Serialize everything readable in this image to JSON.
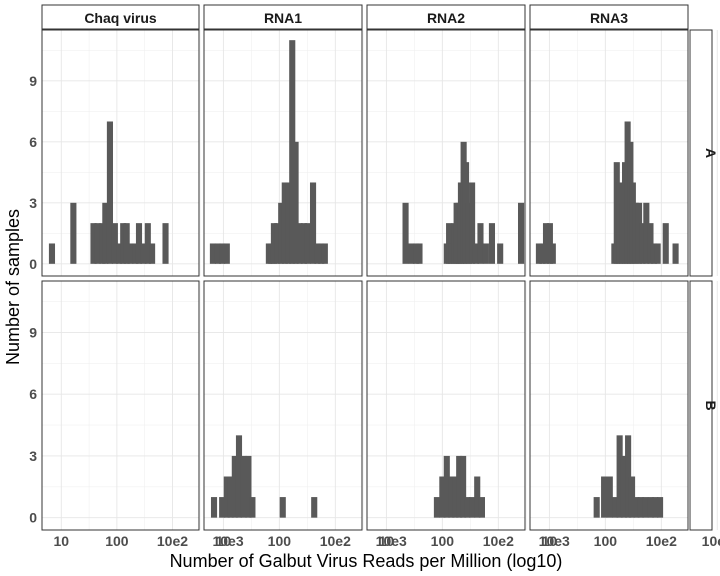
{
  "chart_data": {
    "type": "bar",
    "kind": "faceted histogram",
    "xlabel": "Number of Galbut Virus Reads per Million (log10)",
    "ylabel": "Number of samples",
    "x_scale": "log10",
    "xlim": [
      4.5,
      3000
    ],
    "ylim": [
      -0.6,
      11.5
    ],
    "x_ticks": [
      10,
      100,
      1000,
      10000
    ],
    "x_tick_labels": [
      "10",
      "100",
      "10e2",
      "10e3"
    ],
    "y_ticks": [
      0,
      3,
      6,
      9
    ],
    "y_tick_labels": [
      "0",
      "3",
      "6",
      "9"
    ],
    "grid": true,
    "columns": [
      "Chaq virus",
      "RNA1",
      "RNA2",
      "RNA3"
    ],
    "rows": [
      "A",
      "B"
    ],
    "bar_color": "#595959",
    "panels": [
      {
        "column": "Chaq virus",
        "row": "A",
        "x": [
          6.8,
          16.5,
          38,
          45,
          55,
          62,
          75,
          92,
          110,
          130,
          150,
          175,
          215,
          250,
          300,
          360,
          430,
          750
        ],
        "counts": [
          1,
          3,
          2,
          2,
          2,
          3,
          7,
          2,
          1,
          2,
          2,
          1,
          1,
          2,
          1,
          2,
          1,
          2
        ]
      },
      {
        "column": "RNA1",
        "row": "A",
        "x": [
          6.5,
          8.0,
          9.5,
          11.5,
          65,
          72,
          80,
          92,
          108,
          125,
          145,
          170,
          195,
          230,
          275,
          320,
          400,
          480,
          560,
          650
        ],
        "counts": [
          1,
          1,
          1,
          1,
          1,
          1,
          2,
          2,
          3,
          4,
          4,
          11,
          6,
          2,
          2,
          2,
          4,
          1,
          1,
          1
        ]
      },
      {
        "column": "RNA2",
        "row": "A",
        "x": [
          22,
          28,
          34,
          39,
          120,
          132,
          145,
          165,
          180,
          195,
          215,
          240,
          265,
          300,
          340,
          400,
          480,
          600,
          770,
          1080,
          2550
        ],
        "counts": [
          3,
          1,
          1,
          1,
          1,
          2,
          1,
          2,
          3,
          3,
          4,
          6,
          5,
          3,
          4,
          1,
          2,
          1,
          2,
          1,
          3
        ]
      },
      {
        "column": "RNA3",
        "row": "A",
        "x": [
          6.5,
          7.5,
          8.7,
          10.2,
          11.5,
          145,
          160,
          180,
          200,
          225,
          250,
          280,
          310,
          350,
          400,
          460,
          540,
          640,
          740,
          860,
          1200,
          1800
        ],
        "counts": [
          1,
          1,
          2,
          2,
          1,
          1,
          5,
          4,
          3,
          5,
          7,
          6,
          4,
          3,
          3,
          2,
          3,
          2,
          1,
          1,
          2,
          1
        ]
      },
      {
        "column": "Chaq virus",
        "row": "B",
        "x": [],
        "counts": []
      },
      {
        "column": "RNA1",
        "row": "B",
        "x": [
          6.8,
          9.5,
          11.5,
          13.5,
          16,
          19,
          23,
          28,
          33,
          115,
          420
        ],
        "counts": [
          1,
          1,
          2,
          2,
          3,
          4,
          3,
          3,
          1,
          1,
          1
        ]
      },
      {
        "column": "RNA2",
        "row": "B",
        "x": [
          80,
          100,
          120,
          145,
          170,
          200,
          235,
          280,
          340,
          420,
          510
        ],
        "counts": [
          1,
          2,
          3,
          2,
          2,
          3,
          3,
          1,
          1,
          2,
          1
        ]
      },
      {
        "column": "RNA3",
        "row": "B",
        "x": [
          70,
          95,
          120,
          150,
          180,
          215,
          255,
          300,
          360,
          430,
          520,
          650,
          780,
          950
        ],
        "counts": [
          1,
          2,
          2,
          1,
          4,
          3,
          4,
          2,
          1,
          1,
          1,
          1,
          1,
          1
        ]
      }
    ]
  }
}
